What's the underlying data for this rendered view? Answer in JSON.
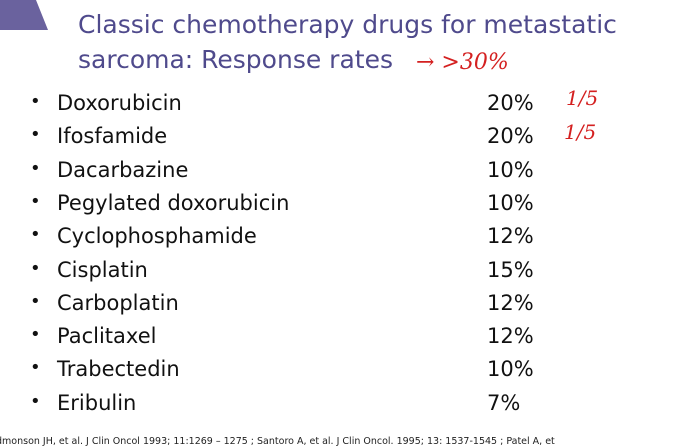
{
  "title": [
    "Classic chemotherapy drugs for metastatic",
    "sarcoma: Response rates"
  ],
  "annotations": [
    "→ >30%",
    "1/5",
    "1/5"
  ],
  "items": [
    {
      "name": "Doxorubicin",
      "rate": "20%"
    },
    {
      "name": "Ifosfamide",
      "rate": "20%"
    },
    {
      "name": "Dacarbazine",
      "rate": "10%"
    },
    {
      "name": "Pegylated doxorubicin",
      "rate": "10%"
    },
    {
      "name": "Cyclophosphamide",
      "rate": "12%"
    },
    {
      "name": "Cisplatin",
      "rate": "15%"
    },
    {
      "name": "Carboplatin",
      "rate": "12%"
    },
    {
      "name": "Paclitaxel",
      "rate": "12%"
    },
    {
      "name": "Trabectedin",
      "rate": "10%"
    },
    {
      "name": "Eribulin",
      "rate": "7%"
    }
  ],
  "bullet": "•",
  "footer": "dmonson JH, et al. J Clin Oncol 1993; 11:1269 – 1275 ; Santoro A, et al. J Clin Oncol. 1995; 13: 1537-1545 ; Patel A, et"
}
